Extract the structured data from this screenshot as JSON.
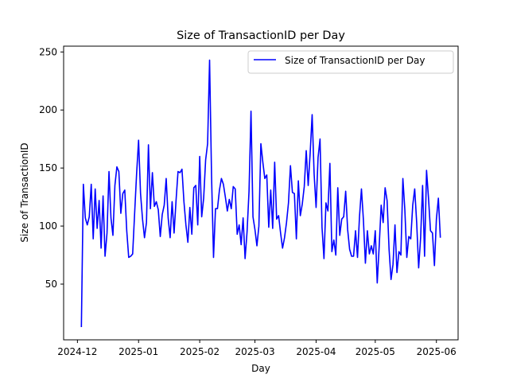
{
  "chart_data": {
    "type": "line",
    "title": "Size of TransactionID per Day",
    "xlabel": "Day",
    "ylabel": "Size of TransactionID",
    "x_start": "2024-12-03",
    "x_end": "2025-06-03",
    "xlim": [
      "2024-11-24",
      "2025-06-12"
    ],
    "ylim": [
      2,
      255
    ],
    "x_ticks": [
      "2024-12",
      "2025-01",
      "2025-02",
      "2025-03",
      "2025-04",
      "2025-05",
      "2025-06"
    ],
    "y_ticks": [
      50,
      100,
      150,
      200,
      250
    ],
    "grid": false,
    "legend": "top-right",
    "series": [
      {
        "name": "Size of TransactionID per Day",
        "color": "#0000ff",
        "values": [
          13,
          136,
          107,
          101,
          108,
          136,
          89,
          132,
          98,
          122,
          81,
          126,
          74,
          94,
          147,
          107,
          92,
          135,
          151,
          147,
          111,
          128,
          131,
          96,
          73,
          74,
          76,
          111,
          145,
          174,
          128,
          106,
          90,
          103,
          170,
          115,
          146,
          117,
          121,
          114,
          91,
          110,
          118,
          141,
          107,
          90,
          121,
          94,
          122,
          147,
          146,
          149,
          121,
          101,
          86,
          116,
          93,
          133,
          135,
          101,
          160,
          108,
          124,
          157,
          171,
          243,
          143,
          73,
          115,
          115,
          131,
          141,
          136,
          125,
          113,
          123,
          115,
          134,
          132,
          93,
          101,
          84,
          107,
          72,
          95,
          130,
          199,
          108,
          97,
          83,
          100,
          171,
          155,
          141,
          144,
          99,
          131,
          98,
          155,
          106,
          109,
          94,
          81,
          90,
          103,
          120,
          152,
          129,
          128,
          89,
          139,
          109,
          119,
          134,
          165,
          135,
          163,
          196,
          145,
          116,
          159,
          175,
          99,
          72,
          120,
          113,
          154,
          78,
          88,
          75,
          133,
          92,
          106,
          108,
          130,
          97,
          80,
          74,
          74,
          96,
          73,
          108,
          132,
          105,
          68,
          96,
          76,
          83,
          76,
          96,
          51,
          83,
          118,
          103,
          133,
          122,
          80,
          54,
          67,
          101,
          60,
          78,
          75,
          141,
          114,
          73,
          91,
          89,
          118,
          132,
          103,
          64,
          90,
          135,
          74,
          148,
          124,
          96,
          94,
          66,
          106,
          124,
          90
        ]
      }
    ]
  }
}
